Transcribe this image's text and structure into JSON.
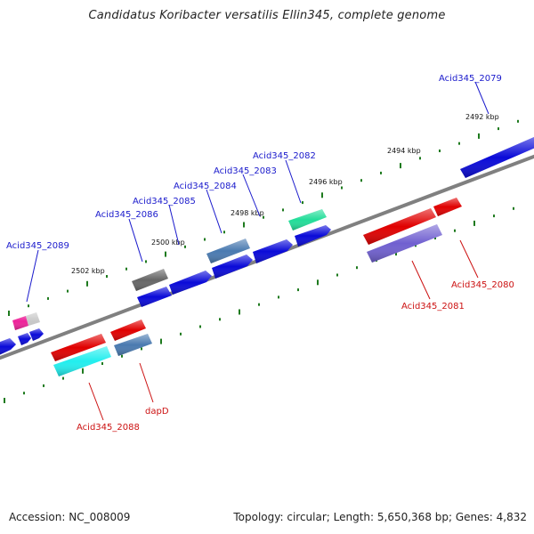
{
  "title": "Candidatus Koribacter versatilis Ellin345, complete genome",
  "footer": {
    "accession": "Accession: NC_008009",
    "summary": "Topology: circular; Length: 5,650,368 bp; Genes: 4,832"
  },
  "kbp_ticks": [
    "2492 kbp",
    "2494 kbp",
    "2496 kbp",
    "2498 kbp",
    "2500 kbp",
    "2502 kbp"
  ],
  "gene_labels": {
    "Acid345_2079": "Acid345_2079",
    "Acid345_2082": "Acid345_2082",
    "Acid345_2083": "Acid345_2083",
    "Acid345_2084": "Acid345_2084",
    "Acid345_2085": "Acid345_2085",
    "Acid345_2086": "Acid345_2086",
    "Acid345_2089": "Acid345_2089",
    "Acid345_2080": "Acid345_2080",
    "Acid345_2081": "Acid345_2081",
    "Acid345_2088": "Acid345_2088",
    "dapD": "dapD"
  },
  "colors": {
    "forward_label": "#1a1acc",
    "reverse_label": "#cc1111",
    "backbone": "#808080",
    "tick": "#1e7a1e",
    "gene_blue": "#0a0ad8",
    "gene_red": "#e00000",
    "gene_steel": "#4a7ab0",
    "gene_green": "#22dd99",
    "gene_gray": "#666666",
    "gene_lavender": "#7060d0",
    "gene_cyan": "#22eeee",
    "gene_pink": "#ee2299",
    "gene_lightgray": "#c8c8c8"
  }
}
